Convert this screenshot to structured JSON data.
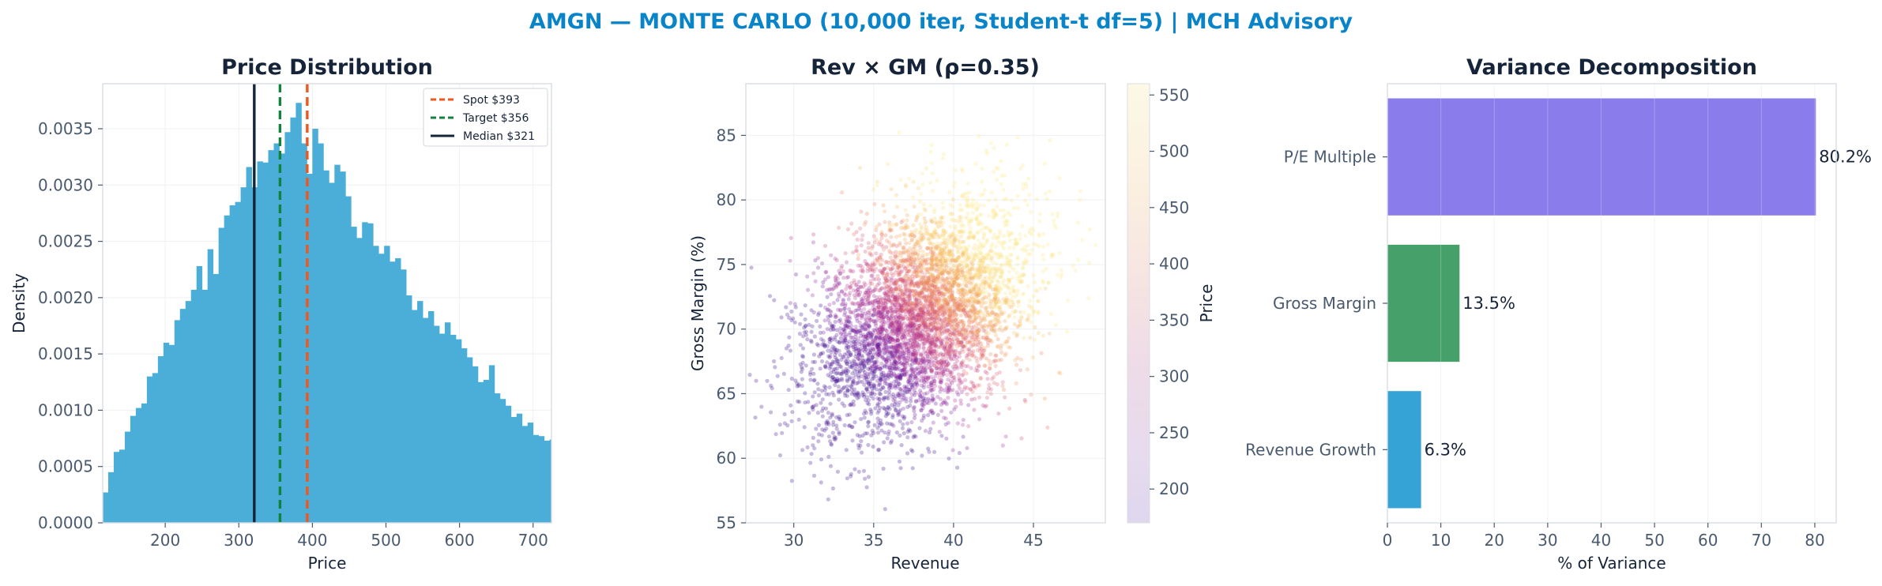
{
  "suptitle": "AMGN — MONTE CARLO (10,000 iter, Student-t df=5) | MCH Advisory",
  "colors": {
    "suptitle": "#0a84c8",
    "hist": "#4aaed8",
    "spot": "#f0561d",
    "target": "#14813f",
    "median": "#16243a",
    "bars": [
      "#8a7cea",
      "#46a06a",
      "#36a3d6"
    ]
  },
  "chart_data": [
    {
      "type": "histogram",
      "title": "Price Distribution",
      "xlabel": "Price",
      "ylabel": "Density",
      "xlim": [
        115,
        725
      ],
      "ylim": [
        0,
        0.0039
      ],
      "xticks": [
        200,
        300,
        400,
        500,
        600,
        700
      ],
      "yticks": [
        0.0,
        0.0005,
        0.001,
        0.0015,
        0.002,
        0.0025,
        0.003,
        0.0035
      ],
      "ytick_labels": [
        "0.0000",
        "0.0005",
        "0.0010",
        "0.0015",
        "0.0020",
        "0.0025",
        "0.0030",
        "0.0035"
      ],
      "grid": true,
      "bin_start": 115,
      "bin_width": 7.5,
      "densities": [
        0.00027,
        0.00045,
        0.00063,
        0.00065,
        0.00081,
        0.00095,
        0.00102,
        0.00106,
        0.0013,
        0.00133,
        0.00148,
        0.0016,
        0.00158,
        0.0018,
        0.0019,
        0.00197,
        0.00207,
        0.00228,
        0.00207,
        0.00243,
        0.00221,
        0.00262,
        0.00273,
        0.00282,
        0.00285,
        0.00298,
        0.00316,
        0.00298,
        0.00321,
        0.0032,
        0.00331,
        0.00337,
        0.00328,
        0.00347,
        0.0036,
        0.00373,
        0.00337,
        0.0031,
        0.0035,
        0.00337,
        0.00313,
        0.00302,
        0.00318,
        0.00312,
        0.0029,
        0.00263,
        0.00253,
        0.00267,
        0.00266,
        0.00246,
        0.00239,
        0.00246,
        0.00232,
        0.00235,
        0.00225,
        0.00202,
        0.00189,
        0.00197,
        0.00182,
        0.00188,
        0.00175,
        0.00168,
        0.00178,
        0.00167,
        0.00163,
        0.00155,
        0.00147,
        0.00139,
        0.00125,
        0.00127,
        0.0014,
        0.00115,
        0.0011,
        0.00104,
        0.00094,
        0.00097,
        0.00086,
        0.00089,
        0.00078,
        0.00077,
        0.00073,
        0.00074,
        0.00071,
        0.00072,
        0.00069,
        0.00063,
        0.00061,
        0.00073,
        0.00065,
        0.00055,
        0.00062,
        0.00049,
        0.00048,
        0.0004,
        0.00035,
        0.00034,
        0.00031,
        0.00026,
        0.00031,
        0.00027,
        0.00028,
        0.00032,
        0.00024,
        0.00025,
        0.00022,
        0.0002,
        0.00019,
        0.00022,
        0.00017,
        0.00018,
        0.00015,
        0.00019,
        0.00016,
        0.00019,
        0.00014,
        0.00015,
        0.00011,
        0.00014,
        0.0001,
        0.00012,
        9e-05
      ],
      "vlines": [
        {
          "name": "Spot $393",
          "x": 393,
          "style": "dashed",
          "color": "#f0561d"
        },
        {
          "name": "Target $356",
          "x": 356,
          "style": "dashed",
          "color": "#14813f"
        },
        {
          "name": "Median $321",
          "x": 321,
          "style": "solid",
          "color": "#16243a"
        }
      ],
      "legend_position": "top-right"
    },
    {
      "type": "scatter",
      "title": "Rev × GM (ρ=0.35)",
      "xlabel": "Revenue",
      "ylabel": "Gross Margin (%)",
      "xlim": [
        27,
        49.5
      ],
      "ylim": [
        55,
        89
      ],
      "xticks": [
        30,
        35,
        40,
        45
      ],
      "yticks": [
        55,
        60,
        65,
        70,
        75,
        80,
        85
      ],
      "n_points": 5000,
      "x_mean": 38,
      "x_sd": 3.3,
      "y_mean": 71,
      "y_sd": 4.2,
      "correlation": 0.35,
      "color_by": "Price",
      "colormap": "plasma (reversed, light at high values)",
      "colorbar": {
        "label": "Price",
        "min": 170,
        "max": 560,
        "ticks": [
          200,
          250,
          300,
          350,
          400,
          450,
          500,
          550
        ]
      },
      "grid": true
    },
    {
      "type": "bar",
      "orientation": "horizontal",
      "title": "Variance Decomposition",
      "xlabel": "% of Variance",
      "ylabel": "",
      "xlim": [
        0,
        84
      ],
      "xticks": [
        0,
        10,
        20,
        30,
        40,
        50,
        60,
        70,
        80
      ],
      "categories": [
        "P/E Multiple",
        "Gross Margin",
        "Revenue Growth"
      ],
      "values": [
        80.2,
        13.5,
        6.3
      ],
      "value_labels": [
        "80.2%",
        "13.5%",
        "6.3%"
      ],
      "grid": true
    }
  ]
}
